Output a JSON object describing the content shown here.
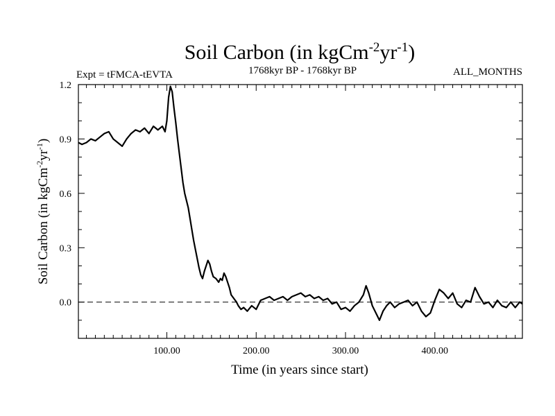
{
  "chart_data": {
    "type": "line",
    "title": "Soil Carbon (in kgCm",
    "title_sup1": "-2",
    "title_mid": "yr",
    "title_sup2": "-1",
    "title_end": ")",
    "subtitle_left": "Expt = tFMCA-tEVTA",
    "subtitle_center": "1768kyr BP - 1768kyr BP",
    "subtitle_right": "ALL_MONTHS",
    "xlabel": "Time (in years since start)",
    "ylabel_main": "Soil Carbon (in kgCm",
    "ylabel_sup1": "-2",
    "ylabel_mid": "yr",
    "ylabel_sup2": "-1",
    "ylabel_end": ")",
    "xlim": [
      1,
      498
    ],
    "ylim": [
      -0.2,
      1.2
    ],
    "xticks": [
      100,
      200,
      300,
      400
    ],
    "xtick_labels": [
      "100.00",
      "200.00",
      "300.00",
      "400.00"
    ],
    "yticks": [
      0.0,
      0.3,
      0.6,
      0.9,
      1.2
    ],
    "ytick_labels": [
      "0.0",
      "0.3",
      "0.6",
      "0.9",
      "1.2"
    ],
    "reference_line": 0.0,
    "series": [
      {
        "name": "Soil Carbon",
        "x": [
          1,
          5,
          10,
          15,
          20,
          25,
          30,
          35,
          40,
          45,
          50,
          55,
          60,
          65,
          70,
          75,
          80,
          85,
          90,
          95,
          98,
          100,
          102,
          104,
          106,
          108,
          110,
          112,
          114,
          116,
          118,
          120,
          122,
          124,
          126,
          128,
          130,
          132,
          134,
          136,
          138,
          140,
          142,
          144,
          146,
          148,
          150,
          152,
          155,
          158,
          160,
          162,
          164,
          166,
          168,
          170,
          172,
          175,
          178,
          180,
          183,
          186,
          190,
          195,
          200,
          205,
          210,
          215,
          220,
          225,
          230,
          235,
          240,
          245,
          250,
          255,
          260,
          265,
          270,
          275,
          280,
          285,
          290,
          295,
          300,
          305,
          310,
          315,
          320,
          323,
          326,
          330,
          335,
          338,
          342,
          346,
          350,
          355,
          360,
          365,
          370,
          375,
          380,
          385,
          390,
          395,
          400,
          405,
          410,
          415,
          420,
          425,
          430,
          435,
          440,
          445,
          450,
          455,
          460,
          465,
          470,
          475,
          480,
          485,
          490,
          495,
          498
        ],
        "values": [
          0.88,
          0.87,
          0.88,
          0.9,
          0.89,
          0.91,
          0.93,
          0.94,
          0.9,
          0.88,
          0.86,
          0.9,
          0.93,
          0.95,
          0.94,
          0.96,
          0.93,
          0.97,
          0.95,
          0.97,
          0.94,
          1.0,
          1.13,
          1.19,
          1.16,
          1.07,
          0.99,
          0.9,
          0.82,
          0.74,
          0.66,
          0.6,
          0.56,
          0.52,
          0.46,
          0.4,
          0.34,
          0.29,
          0.24,
          0.19,
          0.15,
          0.13,
          0.17,
          0.2,
          0.23,
          0.21,
          0.17,
          0.14,
          0.13,
          0.11,
          0.13,
          0.12,
          0.16,
          0.14,
          0.11,
          0.08,
          0.04,
          0.02,
          0.0,
          -0.02,
          -0.04,
          -0.03,
          -0.05,
          -0.02,
          -0.04,
          0.01,
          0.02,
          0.03,
          0.01,
          0.02,
          0.03,
          0.01,
          0.03,
          0.04,
          0.05,
          0.03,
          0.04,
          0.02,
          0.03,
          0.01,
          0.02,
          -0.01,
          0.0,
          -0.04,
          -0.03,
          -0.05,
          -0.02,
          0.0,
          0.04,
          0.09,
          0.05,
          -0.02,
          -0.07,
          -0.1,
          -0.05,
          -0.02,
          0.0,
          -0.03,
          -0.01,
          0.0,
          0.01,
          -0.02,
          0.0,
          -0.05,
          -0.08,
          -0.06,
          0.01,
          0.07,
          0.05,
          0.02,
          0.05,
          -0.01,
          -0.03,
          0.01,
          0.0,
          0.08,
          0.03,
          -0.01,
          0.0,
          -0.03,
          0.01,
          -0.02,
          -0.03,
          0.0,
          -0.03,
          0.0,
          -0.01
        ]
      }
    ]
  }
}
